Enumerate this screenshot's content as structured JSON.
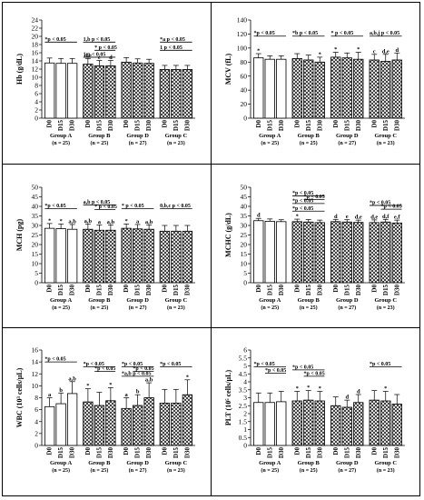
{
  "chart_data": [
    {
      "type": "bar",
      "ylabel": "Hb (g/dL)",
      "ylim": [
        0,
        24
      ],
      "yticks": [
        0,
        2,
        4,
        6,
        8,
        10,
        12,
        14,
        16,
        18,
        20,
        22,
        24
      ],
      "groups": [
        {
          "days": [
            "D0",
            "D15",
            "D30"
          ],
          "name": "Group A",
          "n": "(n = 25)",
          "values": [
            13.5,
            13.4,
            13.4
          ],
          "err": [
            1.2,
            1.2,
            1.2
          ],
          "pattern": "none",
          "labels": [
            "",
            "",
            ""
          ]
        },
        {
          "days": [
            "D0",
            "D15",
            "D30"
          ],
          "name": "Group B",
          "n": "(n = 25)",
          "values": [
            13.2,
            12.8,
            12.8
          ],
          "err": [
            1.4,
            1.3,
            1.3
          ],
          "pattern": "hatch",
          "labels": [
            "d,e",
            "e",
            "d"
          ]
        },
        {
          "days": [
            "D0",
            "D15",
            "D30"
          ],
          "name": "Group D",
          "n": "(n = 27)",
          "values": [
            13.7,
            13.5,
            13.4
          ],
          "err": [
            1.1,
            1.0,
            1.0
          ],
          "pattern": "hatch",
          "labels": [
            "",
            "",
            ""
          ]
        },
        {
          "days": [
            "D0",
            "D15",
            "D30"
          ],
          "name": "Group C",
          "n": "(n = 23)",
          "values": [
            11.9,
            11.9,
            11.9
          ],
          "err": [
            1.0,
            1.0,
            1.0
          ],
          "pattern": "hatch",
          "labels": [
            "",
            "",
            ""
          ]
        }
      ],
      "annotations": [
        {
          "group": 0,
          "text": "*p < 0.05",
          "from": 0,
          "to": 2,
          "y": 18.6
        },
        {
          "group": 1,
          "text": "1,b p < 0.05",
          "from": 0,
          "to": 2,
          "y": 18.6
        },
        {
          "group": 1,
          "text": "* p < 0.05",
          "from": 1,
          "to": 2,
          "y": 16.6
        },
        {
          "group": 1,
          "text": "1 p < 0.05",
          "from": 0,
          "to": 2,
          "y": 14.9
        },
        {
          "group": 3,
          "text": "*a p < 0.05",
          "from": 0,
          "to": 2,
          "y": 18.6
        },
        {
          "group": 3,
          "text": "1 p < 0.05",
          "from": 0,
          "to": 2,
          "y": 16.6
        }
      ]
    },
    {
      "type": "bar",
      "ylabel": "MCV (fL)",
      "ylim": [
        0,
        140
      ],
      "yticks": [
        0,
        20,
        40,
        60,
        80,
        100,
        120,
        140
      ],
      "groups": [
        {
          "days": [
            "D0",
            "D15",
            "D30"
          ],
          "name": "Group A",
          "n": "(n = 25)",
          "values": [
            86,
            84,
            84
          ],
          "err": [
            6,
            5,
            5
          ],
          "pattern": "none",
          "labels": [
            "*",
            "",
            ""
          ]
        },
        {
          "days": [
            "D0",
            "D15",
            "D30"
          ],
          "name": "Group B",
          "n": "(n = 25)",
          "values": [
            85,
            83,
            80
          ],
          "err": [
            7,
            7,
            7
          ],
          "pattern": "hatch",
          "labels": [
            "",
            "",
            "*"
          ]
        },
        {
          "days": [
            "D0",
            "D15",
            "D30"
          ],
          "name": "Group D",
          "n": "(n = 27)",
          "values": [
            87,
            86,
            84
          ],
          "err": [
            7,
            7,
            10
          ],
          "pattern": "hatch",
          "labels": [
            "*",
            "",
            "*"
          ]
        },
        {
          "days": [
            "D0",
            "D15",
            "D30"
          ],
          "name": "Group C",
          "n": "(n = 23)",
          "values": [
            83,
            81,
            83
          ],
          "err": [
            8,
            10,
            10
          ],
          "pattern": "hatch",
          "labels": [
            "c",
            "d,e",
            "d"
          ]
        }
      ],
      "annotations": [
        {
          "group": 0,
          "text": "*p < 0.05",
          "from": 0,
          "to": 2,
          "y": 117
        },
        {
          "group": 1,
          "text": "*b p < 0.05",
          "from": 0,
          "to": 2,
          "y": 117
        },
        {
          "group": 2,
          "text": "* p < 0.05",
          "from": 0,
          "to": 2,
          "y": 117
        },
        {
          "group": 3,
          "text": "a,b,j p < 0.05",
          "from": 0,
          "to": 2,
          "y": 117
        }
      ]
    },
    {
      "type": "bar",
      "ylabel": "MCH (pg)",
      "ylim": [
        0,
        50
      ],
      "yticks": [
        0,
        5,
        10,
        15,
        20,
        25,
        30,
        35,
        40,
        45,
        50
      ],
      "groups": [
        {
          "days": [
            "D0",
            "D15",
            "D30"
          ],
          "name": "Group A",
          "n": "(n = 25)",
          "values": [
            28.5,
            28.3,
            28.0
          ],
          "err": [
            2.5,
            2.5,
            2.5
          ],
          "pattern": "none",
          "labels": [
            "*",
            "*",
            "a,b"
          ]
        },
        {
          "days": [
            "D0",
            "D15",
            "D30"
          ],
          "name": "Group B",
          "n": "(n = 25)",
          "values": [
            28.0,
            27.5,
            27.5
          ],
          "err": [
            2.8,
            2.8,
            2.8
          ],
          "pattern": "hatch",
          "labels": [
            "a,b",
            "a",
            "a,b"
          ]
        },
        {
          "days": [
            "D0",
            "D15",
            "D30"
          ],
          "name": "Group D",
          "n": "(n = 27)",
          "values": [
            28.5,
            28.2,
            28.0
          ],
          "err": [
            2.3,
            2.3,
            2.3
          ],
          "pattern": "hatch",
          "labels": [
            "*",
            "a",
            "a,b"
          ]
        },
        {
          "days": [
            "D0",
            "D15",
            "D30"
          ],
          "name": "Group C",
          "n": "(n = 23)",
          "values": [
            27.0,
            27.0,
            27.0
          ],
          "err": [
            3.0,
            3.0,
            3.0
          ],
          "pattern": "hatch",
          "labels": [
            "",
            "",
            ""
          ]
        }
      ],
      "annotations": [
        {
          "group": 0,
          "text": "*p < 0.05",
          "from": 0,
          "to": 2,
          "y": 38.8
        },
        {
          "group": 1,
          "text": "a,b p < 0.05",
          "from": 0,
          "to": 2,
          "y": 40.8
        },
        {
          "group": 1,
          "text": "* p < 0.05",
          "from": 1,
          "to": 2,
          "y": 38.4
        },
        {
          "group": 2,
          "text": "* p < 0.05",
          "from": 0,
          "to": 2,
          "y": 38.8
        },
        {
          "group": 3,
          "text": "0,b,c p < 0.05",
          "from": 0,
          "to": 2,
          "y": 38.8
        }
      ]
    },
    {
      "type": "bar",
      "ylabel": "MCHC (g/dL)",
      "ylim": [
        0,
        50
      ],
      "yticks": [
        0,
        5,
        10,
        15,
        20,
        25,
        30,
        35,
        40,
        45,
        50
      ],
      "groups": [
        {
          "days": [
            "D0",
            "D15",
            "D30"
          ],
          "name": "Group A",
          "n": "(n = 25)",
          "values": [
            32.5,
            32.2,
            32.0
          ],
          "err": [
            1.2,
            1.2,
            1.0
          ],
          "pattern": "none",
          "labels": [
            "d",
            "",
            ""
          ]
        },
        {
          "days": [
            "D0",
            "D15",
            "D30"
          ],
          "name": "Group B",
          "n": "(n = 25)",
          "values": [
            32.0,
            31.8,
            31.5
          ],
          "err": [
            1.3,
            1.3,
            1.3
          ],
          "pattern": "hatch",
          "labels": [
            "*",
            "",
            ""
          ]
        },
        {
          "days": [
            "D0",
            "D15",
            "D30"
          ],
          "name": "Group D",
          "n": "(n = 27)",
          "values": [
            32.0,
            31.8,
            31.6
          ],
          "err": [
            1.2,
            1.2,
            1.2
          ],
          "pattern": "hatch",
          "labels": [
            "d",
            "e",
            "d,e"
          ]
        },
        {
          "days": [
            "D0",
            "D15",
            "D30"
          ],
          "name": "Group C",
          "n": "(n = 23)",
          "values": [
            31.5,
            31.8,
            31.3
          ],
          "err": [
            1.4,
            1.4,
            1.5
          ],
          "pattern": "hatch",
          "labels": [
            "d,e",
            "d,f",
            "e,f"
          ]
        }
      ],
      "annotations": [
        {
          "group": 1,
          "text": "*p < 0.05",
          "from": 0,
          "to": 2,
          "y": 45.5
        },
        {
          "group": 1,
          "text": "*p < 0.05",
          "from": 1,
          "to": 2,
          "y": 43.5
        },
        {
          "group": 1,
          "text": "*p < 0.05",
          "from": 0,
          "to": 2,
          "y": 41.5
        },
        {
          "group": 1,
          "text": "*p < 0.05",
          "from": 0,
          "to": 2,
          "y": 37.5
        },
        {
          "group": 3,
          "text": "*p < 0.05",
          "from": 0,
          "to": 2,
          "y": 40.5
        },
        {
          "group": 3,
          "text": "*p < 0.05",
          "from": 1,
          "to": 2,
          "y": 38.5
        }
      ]
    },
    {
      "type": "bar",
      "ylabel": "WBC (10³ cells/µL)",
      "ylim": [
        0,
        16
      ],
      "yticks": [
        0,
        2,
        4,
        6,
        8,
        10,
        12,
        14,
        16
      ],
      "groups": [
        {
          "days": [
            "D0",
            "D15",
            "D30"
          ],
          "name": "Group A",
          "n": "(n = 25)",
          "values": [
            6.5,
            7.0,
            8.7
          ],
          "err": [
            1.5,
            1.8,
            2.0
          ],
          "pattern": "none",
          "labels": [
            "a",
            "b",
            "a,b"
          ]
        },
        {
          "days": [
            "D0",
            "D15",
            "D30"
          ],
          "name": "Group B",
          "n": "(n = 25)",
          "values": [
            7.3,
            6.7,
            7.5
          ],
          "err": [
            2.2,
            2.2,
            2.2
          ],
          "pattern": "hatch",
          "labels": [
            "*",
            "",
            "*"
          ]
        },
        {
          "days": [
            "D0",
            "D15",
            "D30"
          ],
          "name": "Group D",
          "n": "(n = 27)",
          "values": [
            6.2,
            6.7,
            8.0
          ],
          "err": [
            1.8,
            1.8,
            2.5
          ],
          "pattern": "hatch",
          "labels": [
            "a",
            "b",
            "a,b"
          ]
        },
        {
          "days": [
            "D0",
            "D15",
            "D30"
          ],
          "name": "Group C",
          "n": "(n = 23)",
          "values": [
            7.1,
            7.1,
            8.5
          ],
          "err": [
            2.3,
            2.3,
            2.5
          ],
          "pattern": "hatch",
          "labels": [
            "",
            "",
            "*"
          ]
        }
      ],
      "annotations": [
        {
          "group": 0,
          "text": "*p < 0.05",
          "from": 0,
          "to": 2,
          "y": 14.0
        },
        {
          "group": 1,
          "text": "*p < 0.05",
          "from": 0,
          "to": 2,
          "y": 13.2
        },
        {
          "group": 1,
          "text": "*p < 0.05",
          "from": 1,
          "to": 2,
          "y": 12.4
        },
        {
          "group": 2,
          "text": "*p < 0.05",
          "from": 0,
          "to": 2,
          "y": 13.2
        },
        {
          "group": 2,
          "text": "*p < 0.05",
          "from": 1,
          "to": 2,
          "y": 12.4
        },
        {
          "group": 2,
          "text": "*a,b p < 0.05",
          "from": 0,
          "to": 2,
          "y": 11.6
        },
        {
          "group": 3,
          "text": "*p < 0.05",
          "from": 0,
          "to": 2,
          "y": 13.2
        }
      ]
    },
    {
      "type": "bar",
      "ylabel": "PLT (10⁵ cells/µL)",
      "ylim": [
        0,
        6
      ],
      "yticks": [
        0,
        0.5,
        1,
        1.5,
        2,
        2.5,
        3,
        3.5,
        4,
        4.5,
        5,
        5.5,
        6
      ],
      "groups": [
        {
          "days": [
            "D0",
            "D15",
            "D30"
          ],
          "name": "Group A",
          "n": "(n = 25)",
          "values": [
            2.7,
            2.7,
            2.75
          ],
          "err": [
            0.6,
            0.6,
            0.65
          ],
          "pattern": "none",
          "labels": [
            "",
            "",
            ""
          ]
        },
        {
          "days": [
            "D0",
            "D15",
            "D30"
          ],
          "name": "Group B",
          "n": "(n = 25)",
          "values": [
            2.8,
            2.85,
            2.8
          ],
          "err": [
            0.6,
            0.6,
            0.6
          ],
          "pattern": "hatch",
          "labels": [
            "*",
            "*",
            "*"
          ]
        },
        {
          "days": [
            "D0",
            "D15",
            "D30"
          ],
          "name": "Group D",
          "n": "(n = 27)",
          "values": [
            2.5,
            2.4,
            2.7
          ],
          "err": [
            0.55,
            0.45,
            0.5
          ],
          "pattern": "hatch",
          "labels": [
            "",
            "d",
            "d"
          ]
        },
        {
          "days": [
            "D0",
            "D15",
            "D30"
          ],
          "name": "Group C",
          "n": "(n = 23)",
          "values": [
            2.85,
            2.8,
            2.6
          ],
          "err": [
            0.6,
            0.6,
            0.6
          ],
          "pattern": "hatch",
          "labels": [
            "",
            "*",
            ""
          ]
        }
      ],
      "annotations": [
        {
          "group": 0,
          "text": "*p < 0.05",
          "from": 0,
          "to": 2,
          "y": 4.95
        },
        {
          "group": 0,
          "text": "*p < 0.05",
          "from": 1,
          "to": 2,
          "y": 4.55
        },
        {
          "group": 1,
          "text": "*p < 0.05",
          "from": 0,
          "to": 2,
          "y": 4.75
        },
        {
          "group": 1,
          "text": "*p < 0.05",
          "from": 1,
          "to": 2,
          "y": 4.35
        },
        {
          "group": 3,
          "text": "*p < 0.05",
          "from": 0,
          "to": 2,
          "y": 4.95
        }
      ]
    }
  ]
}
